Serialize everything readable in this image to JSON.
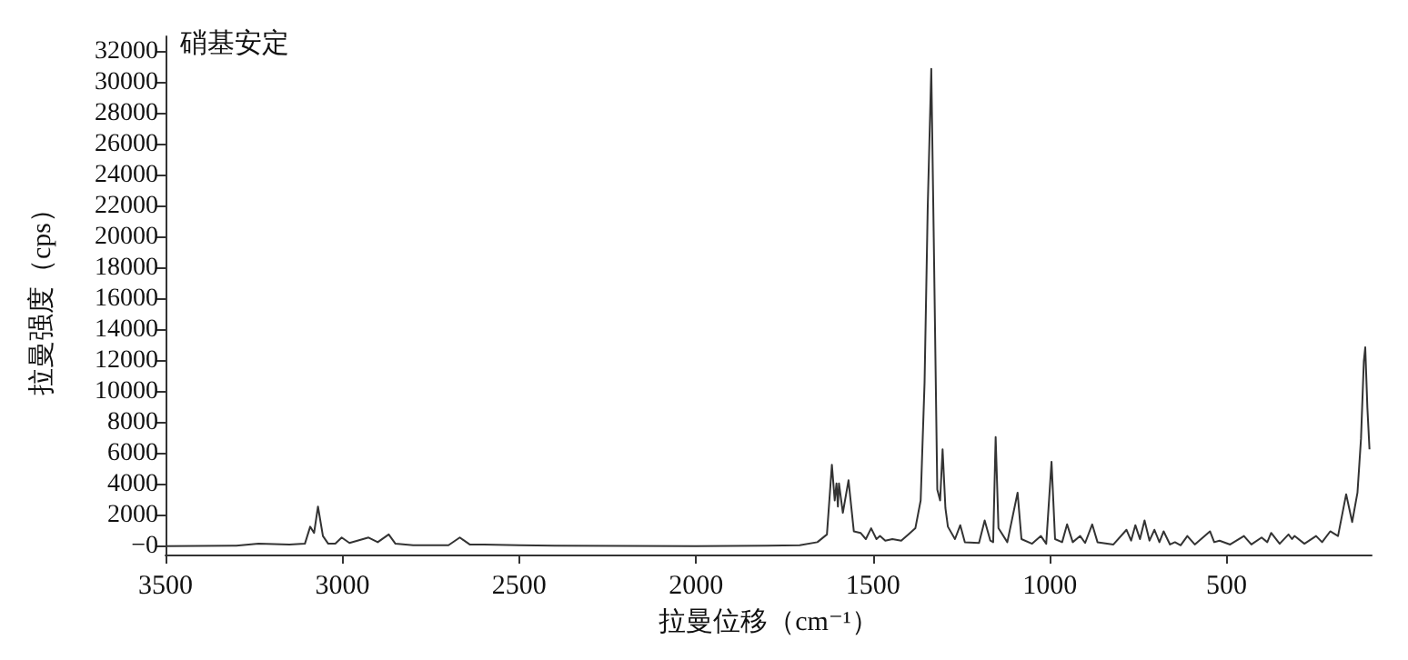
{
  "chart_data": {
    "type": "line",
    "title": "硝基安定",
    "xlabel": "拉曼位移（cm⁻¹）",
    "ylabel": "拉曼强度（cps）",
    "xlim": [
      3500,
      90
    ],
    "xticks": [
      3500,
      3000,
      2500,
      2000,
      1500,
      1000,
      500
    ],
    "ylim": [
      -500,
      33000
    ],
    "yticks": [
      {
        "value": 0,
        "label": "−0"
      },
      2000,
      4000,
      6000,
      8000,
      10000,
      12000,
      14000,
      16000,
      18000,
      20000,
      22000,
      24000,
      26000,
      28000,
      30000,
      32000
    ],
    "series": [
      {
        "color": "#333333",
        "x": [
          3500,
          3300,
          3237,
          3150,
          3106,
          3091,
          3080,
          3069,
          3055,
          3040,
          3020,
          3002,
          2980,
          2926,
          2900,
          2869,
          2850,
          2800,
          2700,
          2668,
          2640,
          2600,
          2500,
          2400,
          2000,
          1800,
          1707,
          1657,
          1630,
          1616,
          1608,
          1603,
          1599,
          1596,
          1585,
          1569,
          1554,
          1535,
          1520,
          1505,
          1490,
          1480,
          1465,
          1445,
          1420,
          1400,
          1380,
          1365,
          1354,
          1345,
          1335,
          1328,
          1318,
          1310,
          1303,
          1295,
          1288,
          1268,
          1253,
          1240,
          1200,
          1184,
          1168,
          1160,
          1153,
          1145,
          1120,
          1091,
          1080,
          1050,
          1025,
          1010,
          995,
          985,
          965,
          951,
          935,
          914,
          900,
          880,
          865,
          820,
          783,
          770,
          758,
          745,
          732,
          718,
          704,
          690,
          678,
          660,
          646,
          630,
          611,
          590,
          547,
          535,
          520,
          490,
          451,
          430,
          401,
          385,
          374,
          350,
          325,
          315,
          308,
          280,
          247,
          230,
          207,
          185,
          162,
          145,
          130,
          120,
          112,
          108,
          102,
          96
        ],
        "values": [
          50,
          80,
          200,
          150,
          200,
          1300,
          900,
          2600,
          700,
          200,
          200,
          600,
          250,
          600,
          300,
          800,
          200,
          100,
          100,
          600,
          150,
          150,
          100,
          80,
          50,
          80,
          100,
          300,
          800,
          5300,
          3000,
          4100,
          2600,
          4100,
          2200,
          4300,
          1000,
          900,
          500,
          1200,
          500,
          700,
          400,
          500,
          400,
          800,
          1200,
          3000,
          10600,
          22000,
          30900,
          20000,
          3700,
          3000,
          6300,
          2500,
          1300,
          500,
          1400,
          300,
          250,
          1700,
          400,
          300,
          7100,
          1200,
          300,
          3500,
          500,
          200,
          700,
          200,
          5500,
          500,
          300,
          1450,
          300,
          700,
          250,
          1450,
          300,
          150,
          1100,
          400,
          1400,
          500,
          1700,
          400,
          1100,
          300,
          1000,
          150,
          300,
          100,
          700,
          150,
          1000,
          300,
          400,
          150,
          700,
          150,
          600,
          300,
          900,
          200,
          800,
          500,
          700,
          200,
          700,
          300,
          1000,
          700,
          3400,
          1600,
          3500,
          7000,
          12000,
          12900,
          9000,
          6300
        ]
      }
    ]
  }
}
